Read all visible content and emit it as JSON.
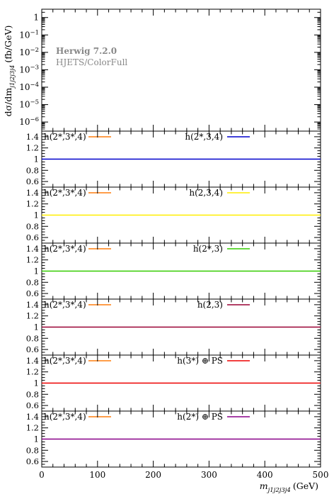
{
  "chart_data": {
    "type": "line",
    "xlim": [
      0,
      500
    ],
    "x_ticks": [
      0,
      100,
      200,
      300,
      400,
      500
    ],
    "x_tick_labels": [
      "0",
      "100",
      "200",
      "300",
      "400",
      "500"
    ],
    "xlabel": "m_{j1j2j3j4} (GeV)",
    "xlabel_main": "m",
    "xlabel_sub": "j1j2j3j4",
    "xlabel_unit": "(GeV)",
    "main_panel": {
      "ylabel": "dσ/dm_{j1j2j3j4} (fb/GeV)",
      "ylabel_main": "dσ/dm",
      "ylabel_sub": "j1j2j3j4",
      "ylabel_unit": "(fb/GeV)",
      "yscale": "log",
      "ylim": [
        3e-07,
        3
      ],
      "y_ticks": [
        1e-06,
        1e-05,
        0.0001,
        0.001,
        0.01,
        0.1,
        1
      ],
      "y_tick_labels": [
        {
          "base": "10",
          "exp": "−6"
        },
        {
          "base": "10",
          "exp": "−5"
        },
        {
          "base": "10",
          "exp": "−4"
        },
        {
          "base": "10",
          "exp": "−3"
        },
        {
          "base": "10",
          "exp": "−2"
        },
        {
          "base": "10",
          "exp": "−1"
        },
        {
          "base": "1",
          "exp": ""
        }
      ],
      "annotations": [
        "Herwig 7.2.0",
        "HJETS/ColorFull"
      ]
    },
    "ratio_panels": [
      {
        "ref_label": "h(2*,3*,4)",
        "ref_color": "#ff7f0e",
        "cmp_label": "h(2*,3,4)",
        "cmp_color": "#0000cc",
        "x": [
          0,
          500
        ],
        "y": [
          1,
          1
        ],
        "ylim": [
          0.5,
          1.5
        ],
        "y_ticks": [
          0.6,
          0.8,
          1,
          1.2,
          1.4
        ],
        "y_tick_labels": [
          "0.6",
          "0.8",
          "1",
          "1.2",
          "1.4"
        ]
      },
      {
        "ref_label": "h(2*,3*,4)",
        "ref_color": "#ff7f0e",
        "cmp_label": "h(2,3,4)",
        "cmp_color": "#ffee00",
        "x": [
          0,
          500
        ],
        "y": [
          1,
          1
        ],
        "ylim": [
          0.5,
          1.5
        ],
        "y_ticks": [
          0.6,
          0.8,
          1,
          1.2,
          1.4
        ],
        "y_tick_labels": [
          "0.6",
          "0.8",
          "1",
          "1.2",
          "1.4"
        ]
      },
      {
        "ref_label": "h(2*,3*,4)",
        "ref_color": "#ff7f0e",
        "cmp_label": "h(2*,3)",
        "cmp_color": "#33cc00",
        "x": [
          0,
          500
        ],
        "y": [
          1,
          1
        ],
        "ylim": [
          0.5,
          1.5
        ],
        "y_ticks": [
          0.6,
          0.8,
          1,
          1.2,
          1.4
        ],
        "y_tick_labels": [
          "0.6",
          "0.8",
          "1",
          "1.2",
          "1.4"
        ]
      },
      {
        "ref_label": "h(2*,3*,4)",
        "ref_color": "#ff7f0e",
        "cmp_label": "h(2,3)",
        "cmp_color": "#990033",
        "x": [
          0,
          500
        ],
        "y": [
          1,
          1
        ],
        "ylim": [
          0.5,
          1.5
        ],
        "y_ticks": [
          0.6,
          0.8,
          1,
          1.2,
          1.4
        ],
        "y_tick_labels": [
          "0.6",
          "0.8",
          "1",
          "1.2",
          "1.4"
        ]
      },
      {
        "ref_label": "h(2*,3*,4)",
        "ref_color": "#ff7f0e",
        "cmp_label": "h(3*) ⊕ PS",
        "cmp_color": "#ee0000",
        "x": [
          0,
          500
        ],
        "y": [
          1,
          1
        ],
        "ylim": [
          0.5,
          1.5
        ],
        "y_ticks": [
          0.6,
          0.8,
          1,
          1.2,
          1.4
        ],
        "y_tick_labels": [
          "0.6",
          "0.8",
          "1",
          "1.2",
          "1.4"
        ]
      },
      {
        "ref_label": "h(2*,3*,4)",
        "ref_color": "#ff7f0e",
        "cmp_label": "h(2*) ⊕ PS",
        "cmp_color": "#880088",
        "x": [
          0,
          500
        ],
        "y": [
          1,
          1
        ],
        "ylim": [
          0.5,
          1.5
        ],
        "y_ticks": [
          0.6,
          0.8,
          1,
          1.2,
          1.4
        ],
        "y_tick_labels": [
          "0.6",
          "0.8",
          "1",
          "1.2",
          "1.4"
        ]
      }
    ]
  }
}
